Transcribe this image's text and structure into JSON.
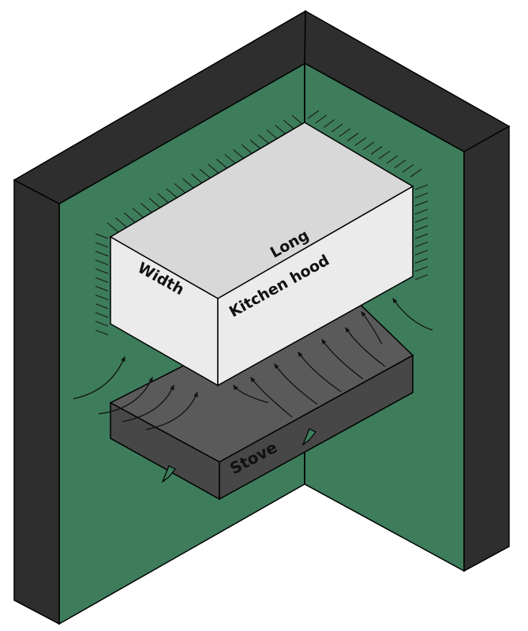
{
  "labels": {
    "long": "Long",
    "width": "Width",
    "hood": "Kitchen hood",
    "stove": "Stove"
  },
  "colors": {
    "wall_inner": "#3d7d5c",
    "wall_edge": "#2e2e2e",
    "hood_top": "#d8d8d8",
    "hood_side": "#ebebeb",
    "stove_top": "#5a5a5a",
    "stove_side": "#474747",
    "outline": "#000000"
  }
}
